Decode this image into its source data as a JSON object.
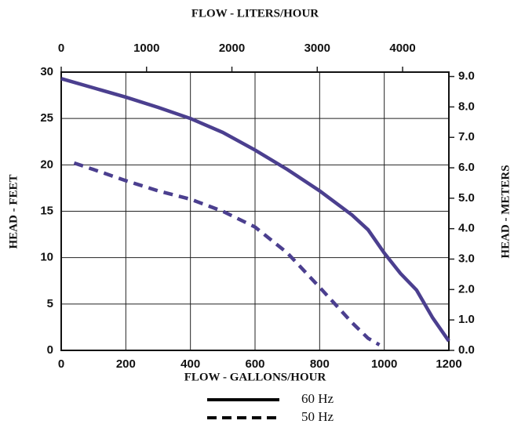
{
  "chart_data": {
    "type": "line",
    "title": "FLOW - LITERS/HOUR",
    "xlabel": "FLOW - GALLONS/HOUR",
    "ylabel": "HEAD - FEET",
    "y2label": "HEAD - METERS",
    "xlim": [
      0,
      1200
    ],
    "xticks": [
      0,
      200,
      400,
      600,
      800,
      1000,
      1200
    ],
    "ylim": [
      0,
      30
    ],
    "yticks": [
      0,
      5,
      10,
      15,
      20,
      25,
      30
    ],
    "x2lim": [
      0,
      4542
    ],
    "x2ticks": [
      0,
      1000,
      2000,
      3000,
      4000
    ],
    "y2lim": [
      0,
      9.144
    ],
    "y2ticks": [
      {
        "value": 0,
        "label": "0.0"
      },
      {
        "value": 1,
        "label": "1.0"
      },
      {
        "value": 2,
        "label": "2.0"
      },
      {
        "value": 3,
        "label": "3.0"
      },
      {
        "value": 4,
        "label": "4.0"
      },
      {
        "value": 5,
        "label": "5.0"
      },
      {
        "value": 6,
        "label": "6.0"
      },
      {
        "value": 7,
        "label": "7.0"
      },
      {
        "value": 8,
        "label": "8.0"
      },
      {
        "value": 9,
        "label": "9.0"
      }
    ],
    "grid": true,
    "legend_line_color": "#000000",
    "series": [
      {
        "name": "60 Hz",
        "color": "#4b3f8f",
        "style": "solid",
        "x": [
          0,
          100,
          200,
          300,
          400,
          500,
          600,
          700,
          800,
          900,
          950,
          1000,
          1050,
          1100,
          1150,
          1200
        ],
        "values": [
          29.3,
          28.3,
          27.3,
          26.2,
          25,
          23.5,
          21.6,
          19.5,
          17.2,
          14.6,
          13,
          10.5,
          8.3,
          6.5,
          3.5,
          1
        ]
      },
      {
        "name": "50 Hz",
        "color": "#4b3f8f",
        "style": "dashed",
        "x": [
          40,
          100,
          200,
          300,
          400,
          500,
          600,
          700,
          800,
          900,
          950,
          985
        ],
        "values": [
          20.2,
          19.5,
          18.3,
          17.2,
          16.3,
          15,
          13.3,
          10.5,
          6.8,
          3,
          1.3,
          0.6
        ]
      }
    ]
  }
}
